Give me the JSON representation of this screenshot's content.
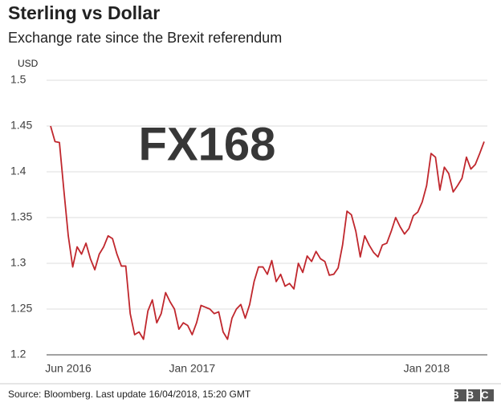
{
  "chart_data": {
    "type": "line",
    "title": "Sterling vs Dollar",
    "subtitle": "Exchange rate since the Brexit referendum",
    "y_label": "USD",
    "watermark": "FX168",
    "source": "Source: Bloomberg. Last update 16/04/2018, 15:20 GMT",
    "logo": "BBC",
    "color": "#c0272d",
    "grid": true,
    "ylim": [
      1.2,
      1.5
    ],
    "yticks": [
      1.2,
      1.25,
      1.3,
      1.35,
      1.4,
      1.45,
      1.5
    ],
    "categories": [
      null,
      null,
      null,
      null,
      "Jun 2016",
      null,
      null,
      null,
      null,
      null,
      null,
      null,
      null,
      null,
      null,
      null,
      null,
      null,
      null,
      null,
      null,
      null,
      null,
      null,
      null,
      null,
      null,
      null,
      null,
      null,
      null,
      null,
      "Jan 2017",
      null,
      null,
      null,
      null,
      null,
      null,
      null,
      null,
      null,
      null,
      null,
      null,
      null,
      null,
      null,
      null,
      null,
      null,
      null,
      null,
      null,
      null,
      null,
      null,
      null,
      null,
      null,
      null,
      null,
      null,
      null,
      null,
      null,
      null,
      null,
      null,
      null,
      null,
      null,
      null,
      null,
      null,
      null,
      null,
      null,
      null,
      null,
      null,
      null,
      null,
      null,
      null,
      "Jan 2018",
      null,
      null,
      null,
      null,
      null,
      null,
      null,
      null,
      null,
      null,
      null,
      null,
      null
    ],
    "values": [
      1.45,
      1.433,
      1.432,
      1.38,
      1.33,
      1.296,
      1.318,
      1.31,
      1.322,
      1.305,
      1.293,
      1.31,
      1.318,
      1.33,
      1.327,
      1.31,
      1.297,
      1.297,
      1.245,
      1.222,
      1.225,
      1.217,
      1.248,
      1.26,
      1.235,
      1.245,
      1.268,
      1.258,
      1.25,
      1.228,
      1.235,
      1.232,
      1.222,
      1.235,
      1.254,
      1.252,
      1.25,
      1.245,
      1.247,
      1.225,
      1.217,
      1.24,
      1.25,
      1.255,
      1.24,
      1.255,
      1.28,
      1.296,
      1.296,
      1.288,
      1.303,
      1.28,
      1.288,
      1.275,
      1.278,
      1.272,
      1.3,
      1.29,
      1.308,
      1.302,
      1.313,
      1.305,
      1.302,
      1.287,
      1.288,
      1.295,
      1.32,
      1.357,
      1.353,
      1.335,
      1.307,
      1.33,
      1.32,
      1.312,
      1.307,
      1.32,
      1.322,
      1.335,
      1.35,
      1.34,
      1.332,
      1.338,
      1.352,
      1.356,
      1.367,
      1.385,
      1.42,
      1.416,
      1.38,
      1.405,
      1.398,
      1.378,
      1.385,
      1.393,
      1.416,
      1.403,
      1.408,
      1.42,
      1.433
    ]
  }
}
